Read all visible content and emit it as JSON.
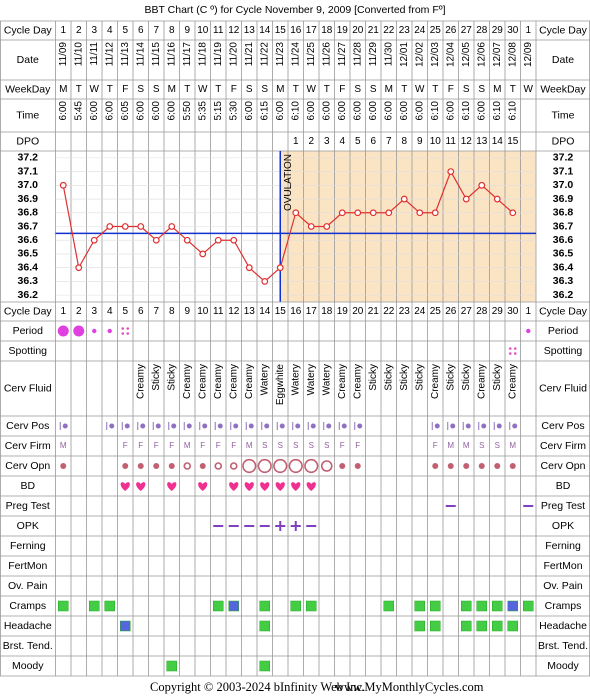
{
  "title": "BBT Chart (C º) for Cycle November 9, 2009  [Converted from Fº]",
  "labels": {
    "cycle_day": "Cycle Day",
    "date": "Date",
    "weekday": "WeekDay",
    "time": "Time",
    "dpo": "DPO"
  },
  "cycle_days": [
    1,
    2,
    3,
    4,
    5,
    6,
    7,
    8,
    9,
    10,
    11,
    12,
    13,
    14,
    15,
    16,
    17,
    18,
    19,
    20,
    21,
    22,
    23,
    24,
    25,
    26,
    27,
    28,
    29,
    30,
    1
  ],
  "dates": [
    "11/09",
    "11/10",
    "11/11",
    "11/12",
    "11/13",
    "11/14",
    "11/15",
    "11/16",
    "11/17",
    "11/18",
    "11/19",
    "11/20",
    "11/21",
    "11/22",
    "11/23",
    "11/24",
    "11/25",
    "11/26",
    "11/27",
    "11/28",
    "11/29",
    "11/30",
    "12/01",
    "12/02",
    "12/03",
    "12/04",
    "12/05",
    "12/06",
    "12/07",
    "12/08",
    "12/09"
  ],
  "weekdays": [
    "M",
    "T",
    "W",
    "T",
    "F",
    "S",
    "S",
    "M",
    "T",
    "W",
    "T",
    "F",
    "S",
    "S",
    "M",
    "T",
    "W",
    "T",
    "F",
    "S",
    "S",
    "M",
    "T",
    "W",
    "T",
    "F",
    "S",
    "S",
    "M",
    "T",
    "W"
  ],
  "times": [
    "6:00",
    "5:45",
    "6:00",
    "6:00",
    "6:05",
    "6:00",
    "6:00",
    "6:00",
    "5:50",
    "5:35",
    "5:15",
    "5:30",
    "6:00",
    "6:15",
    "6:00",
    "6:10",
    "6:00",
    "6:00",
    "6:00",
    "6:00",
    "6:00",
    "6:00",
    "6:00",
    "6:00",
    "6:10",
    "6:00",
    "6:10",
    "6:00",
    "6:10",
    "6:10",
    null
  ],
  "dpo": [
    null,
    null,
    null,
    null,
    null,
    null,
    null,
    null,
    null,
    null,
    null,
    null,
    null,
    null,
    null,
    1,
    2,
    3,
    4,
    5,
    6,
    7,
    8,
    9,
    10,
    11,
    12,
    13,
    14,
    15,
    null
  ],
  "chart_data": {
    "type": "line",
    "color": "#e03030",
    "values": [
      37,
      36.4,
      36.6,
      36.7,
      36.7,
      36.7,
      36.6,
      36.7,
      36.6,
      36.5,
      36.6,
      36.6,
      36.4,
      36.3,
      36.4,
      36.8,
      36.7,
      36.7,
      36.8,
      36.8,
      36.8,
      36.8,
      36.9,
      36.8,
      36.8,
      37.1,
      36.9,
      37,
      36.9,
      36.8,
      null
    ],
    "ylim": [
      36.15,
      37.25
    ],
    "yticks": [
      36.2,
      36.3,
      36.4,
      36.5,
      36.6,
      36.7,
      36.8,
      36.9,
      {
        "value": 37,
        "label": "37.0"
      },
      37.1,
      37.2
    ],
    "coverline": 36.65,
    "coverline_color": "#1030d0",
    "ovulation_day": 15,
    "ovulation_label": "OVULATION",
    "ovulation_fill": "#fbe4c4"
  },
  "tracking": [
    {
      "label": "Period",
      "marks": [
        "heavy",
        "heavy",
        "light",
        "light",
        "spot",
        null,
        null,
        null,
        null,
        null,
        null,
        null,
        null,
        null,
        null,
        null,
        null,
        null,
        null,
        null,
        null,
        null,
        null,
        null,
        null,
        null,
        null,
        null,
        null,
        null,
        "light"
      ]
    },
    {
      "label": "Spotting",
      "marks": [
        null,
        null,
        null,
        null,
        null,
        null,
        null,
        null,
        null,
        null,
        null,
        null,
        null,
        null,
        null,
        null,
        null,
        null,
        null,
        null,
        null,
        null,
        null,
        null,
        null,
        null,
        null,
        null,
        null,
        "spot",
        null
      ]
    },
    {
      "label": "Cerv Fluid",
      "texts": [
        null,
        null,
        null,
        null,
        null,
        "Creamy",
        "Sticky",
        "Sticky",
        "Creamy",
        "Creamy",
        "Creamy",
        "Creamy",
        "Creamy",
        "Watery",
        "Eggwhite",
        "Watery",
        "Watery",
        "Watery",
        "Creamy",
        "Creamy",
        "Sticky",
        "Sticky",
        "Sticky",
        "Sticky",
        "Creamy",
        "Sticky",
        "Sticky",
        "Creamy",
        "Sticky",
        "Creamy",
        null
      ]
    },
    {
      "label": "Cerv Pos",
      "marks": [
        "pos",
        null,
        null,
        "pos",
        "pos",
        "pos",
        "pos",
        "pos",
        "pos",
        "pos",
        "pos",
        "pos",
        "pos",
        "pos",
        "pos",
        "pos",
        "pos",
        "pos",
        "pos",
        "pos",
        null,
        null,
        null,
        null,
        "pos",
        "pos",
        "pos",
        "pos",
        "pos",
        "pos",
        null
      ]
    },
    {
      "label": "Cerv Firm",
      "texts": [
        "M",
        null,
        null,
        null,
        "F",
        "F",
        "F",
        "F",
        "M",
        "F",
        "F",
        "F",
        "M",
        "S",
        "S",
        "S",
        "S",
        "S",
        "F",
        "F",
        null,
        null,
        null,
        null,
        "F",
        "M",
        "M",
        "S",
        "S",
        "M",
        null
      ]
    },
    {
      "label": "Cerv Opn",
      "marks": [
        "dot",
        null,
        null,
        null,
        "dot",
        "dot",
        "dot",
        "dot",
        "ring-s",
        "dot",
        "ring-s",
        "ring-s",
        "ring-l",
        "ring-l",
        "ring-l",
        "ring-l",
        "ring-l",
        "ring-m",
        "dot",
        "dot",
        null,
        null,
        null,
        null,
        "dot",
        "dot",
        "dot",
        "dot",
        "dot",
        "dot",
        null
      ]
    },
    {
      "label": "BD",
      "marks": [
        null,
        null,
        null,
        null,
        "heart",
        "heart",
        null,
        "heart",
        null,
        "heart",
        null,
        "heart",
        "heart",
        "heart",
        "heart",
        "heart",
        "heart",
        null,
        null,
        null,
        null,
        null,
        null,
        null,
        null,
        null,
        null,
        null,
        null,
        null,
        null
      ]
    },
    {
      "label": "Preg Test",
      "marks": [
        null,
        null,
        null,
        null,
        null,
        null,
        null,
        null,
        null,
        null,
        null,
        null,
        null,
        null,
        null,
        null,
        null,
        null,
        null,
        null,
        null,
        null,
        null,
        null,
        null,
        "neg",
        null,
        null,
        null,
        null,
        "neg"
      ]
    },
    {
      "label": "OPK",
      "marks": [
        null,
        null,
        null,
        null,
        null,
        null,
        null,
        null,
        null,
        null,
        "neg",
        "neg",
        "neg",
        "neg",
        "pos",
        "pos",
        "neg",
        null,
        null,
        null,
        null,
        null,
        null,
        null,
        null,
        null,
        null,
        null,
        null,
        null,
        null
      ]
    },
    {
      "label": "Ferning"
    },
    {
      "label": "FertMon"
    },
    {
      "label": "Ov. Pain"
    },
    {
      "label": "Cramps",
      "marks": [
        "#44cc44",
        null,
        "#44cc44",
        "#44cc44",
        null,
        null,
        null,
        null,
        null,
        null,
        "#44cc44",
        "#5566dd",
        null,
        "#44cc44",
        null,
        "#44cc44",
        "#44cc44",
        null,
        null,
        null,
        null,
        "#44cc44",
        null,
        "#44cc44",
        "#44cc44",
        null,
        "#44cc44",
        "#44cc44",
        "#44cc44",
        "#5566dd",
        "#44cc44"
      ]
    },
    {
      "label": "Headache",
      "marks": [
        null,
        null,
        null,
        null,
        "#5566dd",
        null,
        null,
        null,
        null,
        null,
        null,
        null,
        null,
        "#44cc44",
        null,
        null,
        null,
        null,
        null,
        null,
        null,
        null,
        null,
        "#44cc44",
        "#44cc44",
        null,
        "#44cc44",
        "#44cc44",
        "#44cc44",
        "#44cc44",
        null
      ]
    },
    {
      "label": "Brst. Tend."
    },
    {
      "label": "Moody",
      "marks": [
        null,
        null,
        null,
        null,
        null,
        null,
        null,
        "#44cc44",
        null,
        null,
        null,
        null,
        null,
        "#44cc44",
        null,
        null,
        null,
        null,
        null,
        null,
        null,
        null,
        null,
        null,
        null,
        null,
        null,
        null,
        null,
        null,
        null
      ]
    }
  ],
  "footer": {
    "copyright": "Copyright © 2003-2024 bInfinity Web Inc.",
    "site": "www.MyMonthlyCycles.com"
  }
}
